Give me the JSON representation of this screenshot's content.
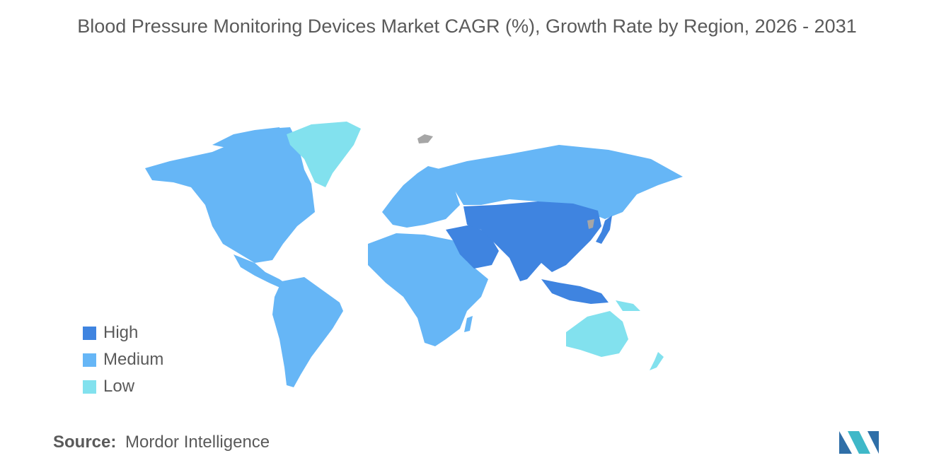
{
  "title": "Blood Pressure Monitoring Devices Market CAGR (%), Growth Rate by Region, 2026 - 2031",
  "legend": [
    {
      "label": "High",
      "color": "#3f84e0"
    },
    {
      "label": "Medium",
      "color": "#66b6f6"
    },
    {
      "label": "Low",
      "color": "#82e1ee"
    }
  ],
  "no_data_color": "#a6a6a6",
  "source": {
    "key": "Source:",
    "value": "Mordor Intelligence"
  },
  "logo": {
    "name": "mordor-intelligence-logo",
    "colors": [
      "#2f6fa8",
      "#3fb8c8"
    ]
  }
}
